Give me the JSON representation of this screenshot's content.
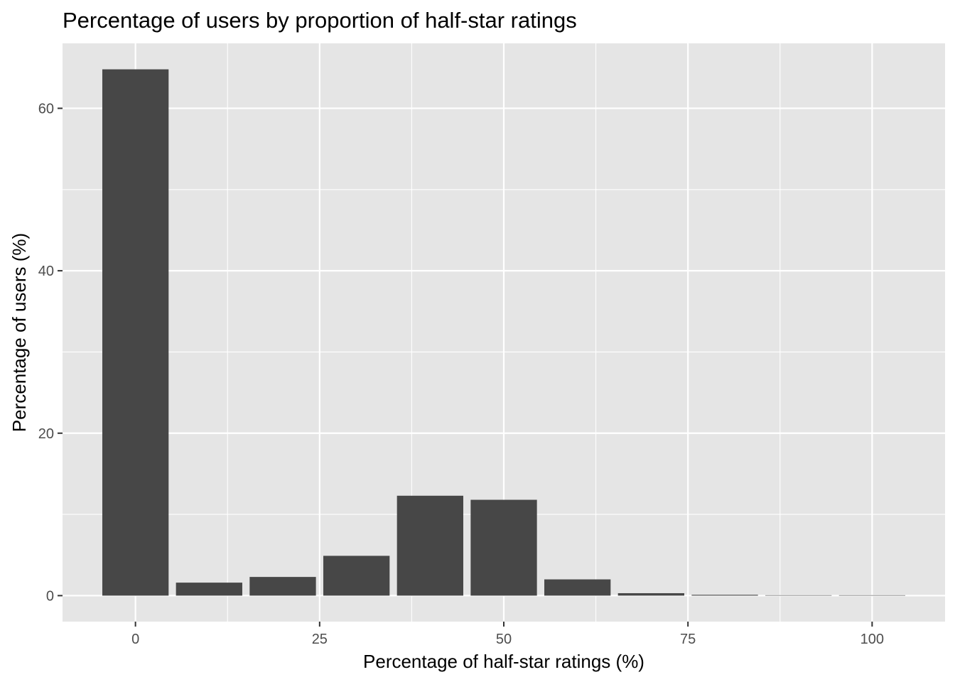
{
  "chart_data": {
    "type": "bar",
    "title": "Percentage of users by proportion of half-star ratings",
    "xlabel": "Percentage of half-star ratings (%)",
    "ylabel": "Percentage of users (%)",
    "x": [
      0,
      10,
      20,
      30,
      40,
      50,
      60,
      70,
      80,
      90,
      100
    ],
    "values": [
      64.8,
      1.6,
      2.3,
      4.9,
      12.3,
      11.8,
      2.0,
      0.3,
      0.1,
      0.05,
      0.05
    ],
    "bar_width": 9,
    "xlim": [
      -9.9,
      109.9
    ],
    "ylim": [
      -3.2,
      68.0
    ],
    "x_ticks": [
      0,
      25,
      50,
      75,
      100
    ],
    "x_tick_labels": [
      "0",
      "25",
      "50",
      "75",
      "100"
    ],
    "y_ticks": [
      0,
      20,
      40,
      60
    ],
    "y_tick_labels": [
      "0",
      "20",
      "40",
      "60"
    ],
    "grid": true,
    "colors": {
      "panel_background": "#e5e5e5",
      "grid_major": "#ffffff",
      "bar_fill": "#474747",
      "tick_text": "#4d4d4d"
    }
  }
}
